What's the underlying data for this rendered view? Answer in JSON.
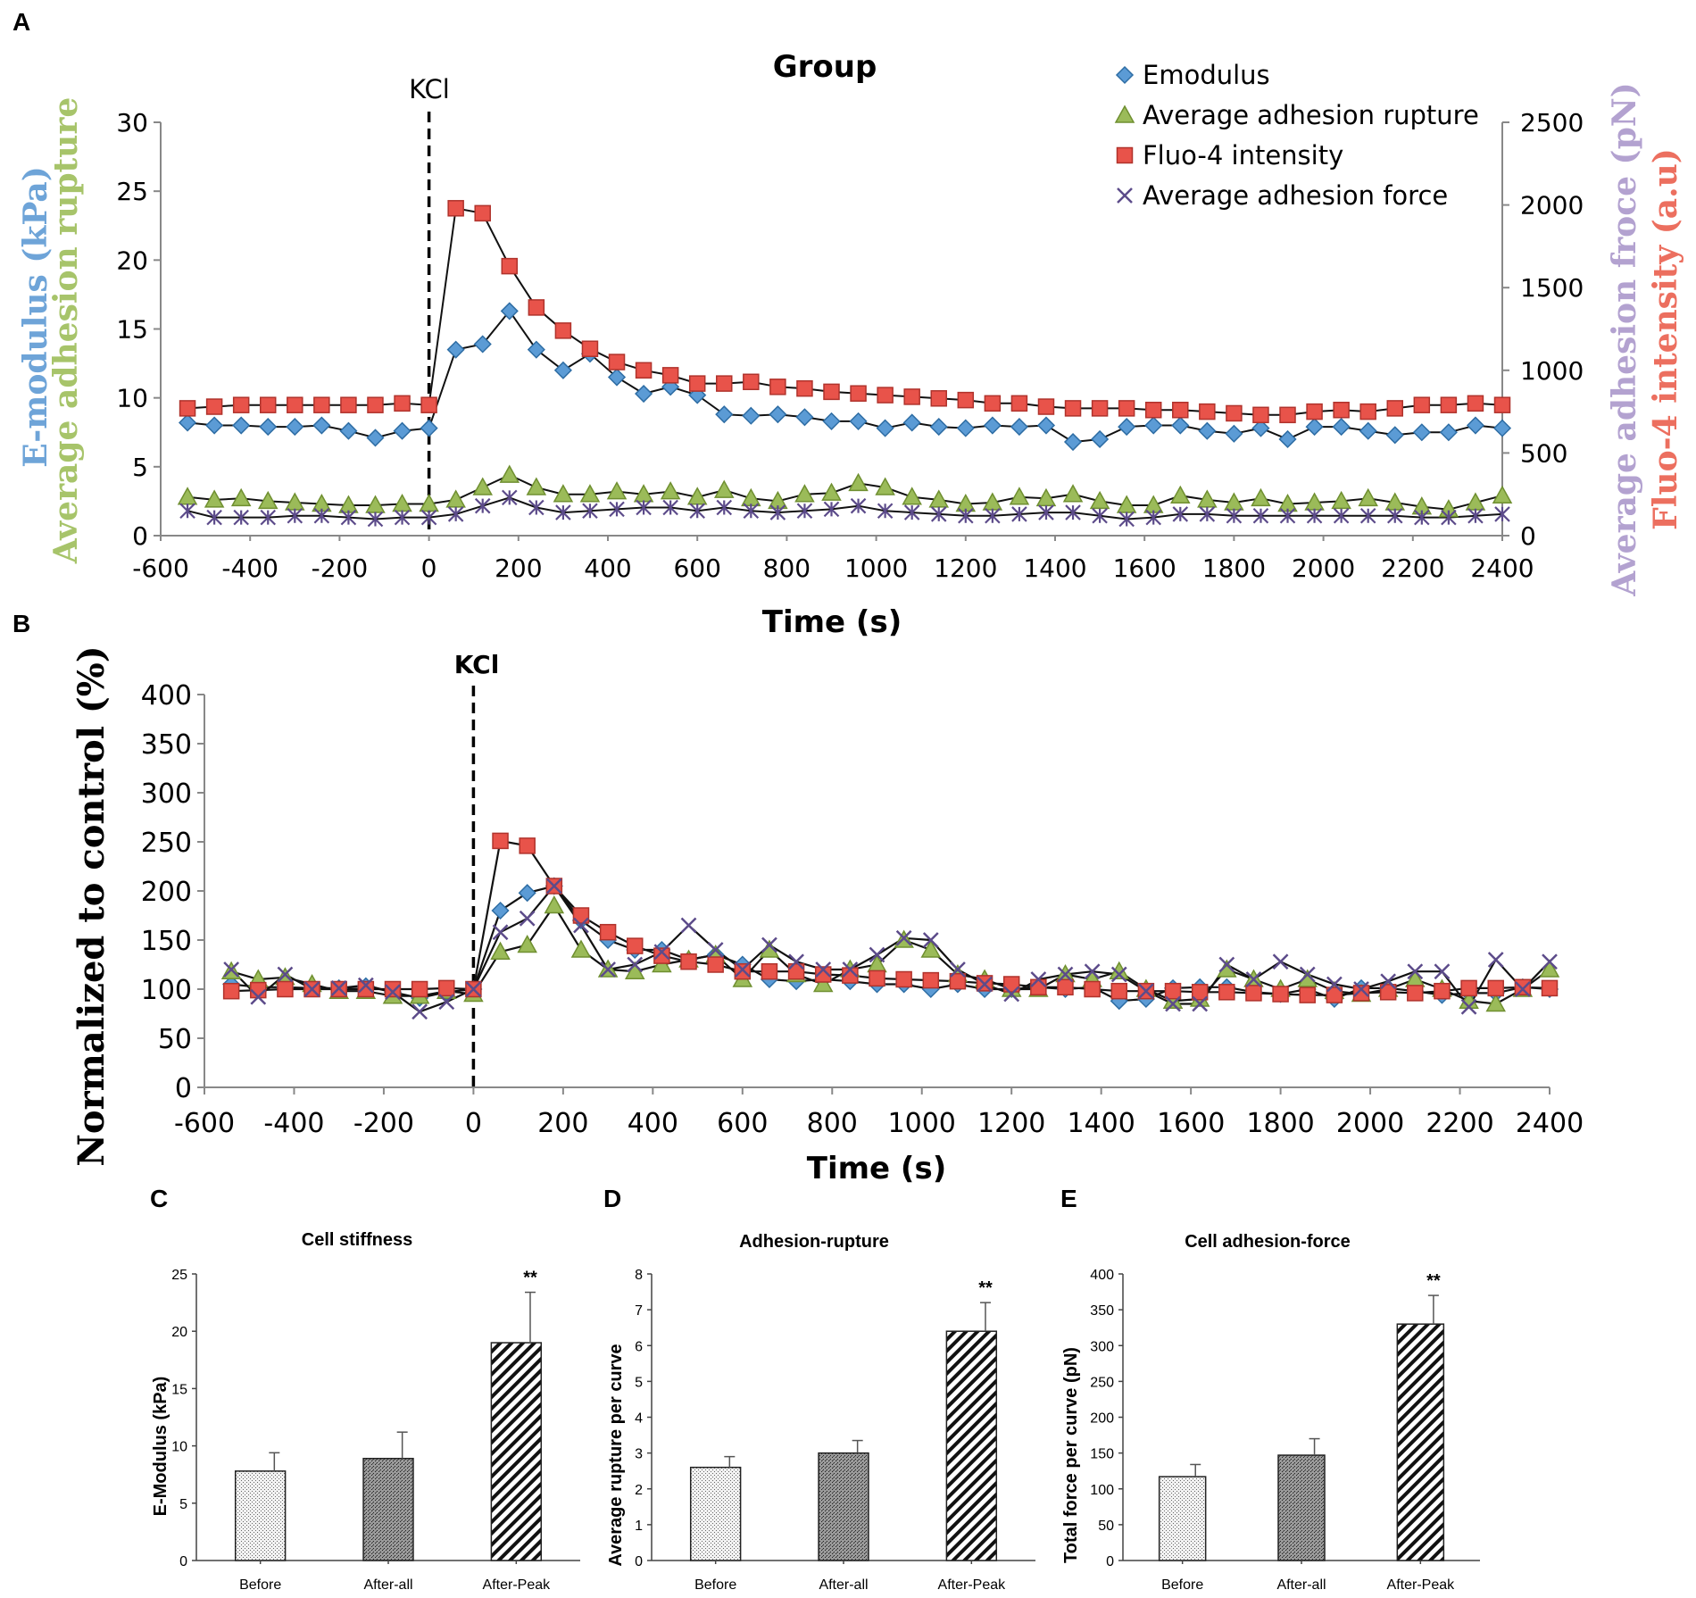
{
  "panels": {
    "A": "A",
    "B": "B",
    "C": "C",
    "D": "D",
    "E": "E"
  },
  "colors": {
    "emodulus": "#5b9bd5",
    "rupture": "#9bbb59",
    "fluo": "#e8534a",
    "force": "#5c4b8a",
    "force_label": "#b3a2d0",
    "fluo_label": "#ec6f5f",
    "emod_label": "#6ea4d8",
    "rupt_label": "#a7c46a"
  },
  "chart_data": [
    {
      "type": "line",
      "panel": "A",
      "title": "Group",
      "annotation": "KCl",
      "xlabel": "Time (s)",
      "ylabel_left_1": "E-modulus (kPa)",
      "ylabel_left_2": "Average adhesion rupture",
      "ylabel_right_1": "Average adhesion froce (pN)",
      "ylabel_right_2": "Fluo-4 intensity (a.u)",
      "xlim": [
        -600,
        2400
      ],
      "ylim_left": [
        0,
        30
      ],
      "ylim_right": [
        0,
        2500
      ],
      "xticks": [
        "-600",
        "-400",
        "-200",
        "0",
        "200",
        "400",
        "600",
        "800",
        "1000",
        "1200",
        "1400",
        "1600",
        "1800",
        "2000",
        "2200",
        "2400"
      ],
      "yticks_left": [
        "0",
        "5",
        "10",
        "15",
        "20",
        "25",
        "30"
      ],
      "yticks_right": [
        "0",
        "500",
        "1000",
        "1500",
        "2000",
        "2500"
      ],
      "legend": [
        "Emodulus",
        "Average adhesion rupture",
        "Fluo-4 intensity",
        "Average adhesion force"
      ],
      "x": [
        -540,
        -480,
        -420,
        -360,
        -300,
        -240,
        -180,
        -120,
        -60,
        0,
        60,
        120,
        180,
        240,
        300,
        360,
        420,
        480,
        540,
        600,
        660,
        720,
        780,
        840,
        900,
        960,
        1020,
        1080,
        1140,
        1200,
        1260,
        1320,
        1380,
        1440,
        1500,
        1560,
        1620,
        1680,
        1740,
        1800,
        1860,
        1920,
        1980,
        2040,
        2100,
        2160,
        2220,
        2280,
        2340,
        2400
      ],
      "series": [
        {
          "name": "Emodulus",
          "axis": "left",
          "values": [
            8.2,
            8.0,
            8.0,
            7.9,
            7.9,
            8.0,
            7.6,
            7.1,
            7.6,
            7.8,
            13.5,
            13.9,
            16.3,
            13.5,
            12.0,
            13.2,
            11.5,
            10.3,
            10.8,
            10.2,
            8.8,
            8.7,
            8.8,
            8.6,
            8.3,
            8.3,
            7.8,
            8.2,
            7.9,
            7.8,
            8.0,
            7.9,
            8.0,
            6.8,
            7.0,
            7.9,
            8.0,
            8.0,
            7.6,
            7.4,
            7.8,
            7.0,
            7.9,
            7.9,
            7.6,
            7.3,
            7.5,
            7.5,
            8.0,
            7.8
          ]
        },
        {
          "name": "Average adhesion rupture",
          "axis": "left",
          "values": [
            2.8,
            2.6,
            2.7,
            2.5,
            2.4,
            2.3,
            2.2,
            2.2,
            2.3,
            2.3,
            2.6,
            3.5,
            4.4,
            3.5,
            3.0,
            3.0,
            3.2,
            3.0,
            3.2,
            2.8,
            3.3,
            2.7,
            2.5,
            3.0,
            3.1,
            3.8,
            3.5,
            2.8,
            2.6,
            2.3,
            2.4,
            2.8,
            2.7,
            3.0,
            2.5,
            2.2,
            2.2,
            2.9,
            2.6,
            2.4,
            2.7,
            2.3,
            2.4,
            2.5,
            2.7,
            2.4,
            2.1,
            1.9,
            2.4,
            2.9
          ]
        },
        {
          "name": "Fluo-4 intensity",
          "axis": "right",
          "values": [
            770,
            780,
            790,
            790,
            790,
            790,
            790,
            790,
            800,
            790,
            1980,
            1950,
            1630,
            1380,
            1240,
            1130,
            1050,
            1000,
            970,
            920,
            920,
            930,
            900,
            890,
            870,
            860,
            850,
            840,
            830,
            820,
            800,
            800,
            780,
            770,
            770,
            770,
            760,
            760,
            750,
            740,
            730,
            730,
            750,
            760,
            750,
            770,
            790,
            790,
            800,
            790
          ]
        },
        {
          "name": "Average adhesion force",
          "axis": "right",
          "values": [
            150,
            110,
            110,
            110,
            120,
            120,
            110,
            100,
            110,
            110,
            130,
            180,
            230,
            170,
            140,
            150,
            160,
            170,
            170,
            150,
            170,
            150,
            140,
            150,
            160,
            180,
            150,
            140,
            130,
            120,
            120,
            130,
            140,
            140,
            120,
            100,
            110,
            130,
            130,
            120,
            120,
            120,
            120,
            120,
            120,
            120,
            110,
            110,
            120,
            130
          ]
        }
      ]
    },
    {
      "type": "line",
      "panel": "B",
      "annotation": "KCl",
      "xlabel": "Time (s)",
      "ylabel": "Normalized to control (%)",
      "xlim": [
        -600,
        2400
      ],
      "ylim": [
        0,
        400
      ],
      "xticks": [
        "-600",
        "-400",
        "-200",
        "0",
        "200",
        "400",
        "600",
        "800",
        "1000",
        "1200",
        "1400",
        "1600",
        "1800",
        "2000",
        "2200",
        "2400"
      ],
      "yticks": [
        "0",
        "50",
        "100",
        "150",
        "200",
        "250",
        "300",
        "350",
        "400"
      ],
      "x": [
        -540,
        -480,
        -420,
        -360,
        -300,
        -240,
        -180,
        -120,
        -60,
        0,
        60,
        120,
        180,
        240,
        300,
        360,
        420,
        480,
        540,
        600,
        660,
        720,
        780,
        840,
        900,
        960,
        1020,
        1080,
        1140,
        1200,
        1260,
        1320,
        1380,
        1440,
        1500,
        1560,
        1620,
        1680,
        1740,
        1800,
        1860,
        1920,
        1980,
        2040,
        2100,
        2160,
        2220,
        2280,
        2340,
        2400
      ],
      "series": [
        {
          "name": "Emodulus",
          "values": [
            105,
            102,
            102,
            101,
            101,
            103,
            97,
            91,
            97,
            100,
            180,
            198,
            205,
            170,
            150,
            140,
            140,
            130,
            135,
            125,
            110,
            108,
            110,
            108,
            105,
            105,
            100,
            105,
            100,
            100,
            102,
            100,
            102,
            88,
            90,
            101,
            102,
            102,
            97,
            95,
            100,
            90,
            101,
            101,
            98,
            94,
            96,
            96,
            102,
            100
          ]
        },
        {
          "name": "Average adhesion rupture",
          "values": [
            118,
            110,
            112,
            105,
            98,
            98,
            93,
            93,
            98,
            95,
            138,
            145,
            185,
            140,
            120,
            118,
            125,
            130,
            135,
            110,
            140,
            115,
            105,
            120,
            125,
            150,
            140,
            115,
            110,
            100,
            100,
            115,
            110,
            118,
            100,
            88,
            90,
            120,
            110,
            100,
            110,
            98,
            95,
            100,
            110,
            100,
            88,
            85,
            100,
            120
          ]
        },
        {
          "name": "Fluo-4 intensity",
          "values": [
            98,
            99,
            100,
            100,
            100,
            100,
            100,
            100,
            101,
            100,
            251,
            246,
            205,
            175,
            158,
            144,
            134,
            128,
            125,
            118,
            118,
            118,
            115,
            114,
            111,
            110,
            109,
            108,
            106,
            105,
            102,
            102,
            100,
            98,
            98,
            98,
            97,
            97,
            96,
            95,
            94,
            94,
            96,
            97,
            96,
            98,
            101,
            101,
            102,
            101
          ]
        },
        {
          "name": "Average adhesion force",
          "values": [
            120,
            92,
            115,
            100,
            101,
            104,
            97,
            77,
            87,
            100,
            158,
            172,
            205,
            165,
            120,
            125,
            138,
            165,
            140,
            120,
            145,
            128,
            120,
            120,
            135,
            152,
            150,
            120,
            105,
            95,
            110,
            115,
            118,
            115,
            98,
            85,
            85,
            125,
            110,
            128,
            115,
            105,
            100,
            108,
            118,
            118,
            82,
            130,
            100,
            128
          ]
        }
      ]
    },
    {
      "type": "bar",
      "panel": "C",
      "title": "Cell stiffness",
      "ylabel": "E-Modulus    (kPa)",
      "categories": [
        "Before",
        "After-all",
        "After-Peak"
      ],
      "values": [
        7.8,
        8.9,
        19.0
      ],
      "errors": [
        1.6,
        2.3,
        4.4
      ],
      "significance": [
        "",
        "",
        "**"
      ],
      "ylim": [
        0,
        25
      ],
      "yticks": [
        "0",
        "5",
        "10",
        "15",
        "20",
        "25"
      ]
    },
    {
      "type": "bar",
      "panel": "D",
      "title": "Adhesion-rupture",
      "ylabel": "Average rupture per curve",
      "categories": [
        "Before",
        "After-all",
        "After-Peak"
      ],
      "values": [
        2.6,
        3.0,
        6.4
      ],
      "errors": [
        0.3,
        0.35,
        0.8
      ],
      "significance": [
        "",
        "",
        "**"
      ],
      "ylim": [
        0,
        8
      ],
      "yticks": [
        "0",
        "1",
        "2",
        "3",
        "4",
        "5",
        "6",
        "7",
        "8"
      ]
    },
    {
      "type": "bar",
      "panel": "E",
      "title": "Cell adhesion-force",
      "ylabel": "Total force per curve (pN)",
      "categories": [
        "Before",
        "After-all",
        "After-Peak"
      ],
      "values": [
        117,
        147,
        330
      ],
      "errors": [
        17,
        23,
        40
      ],
      "significance": [
        "",
        "",
        "**"
      ],
      "ylim": [
        0,
        400
      ],
      "yticks": [
        "0",
        "50",
        "100",
        "150",
        "200",
        "250",
        "300",
        "350",
        "400"
      ]
    }
  ]
}
